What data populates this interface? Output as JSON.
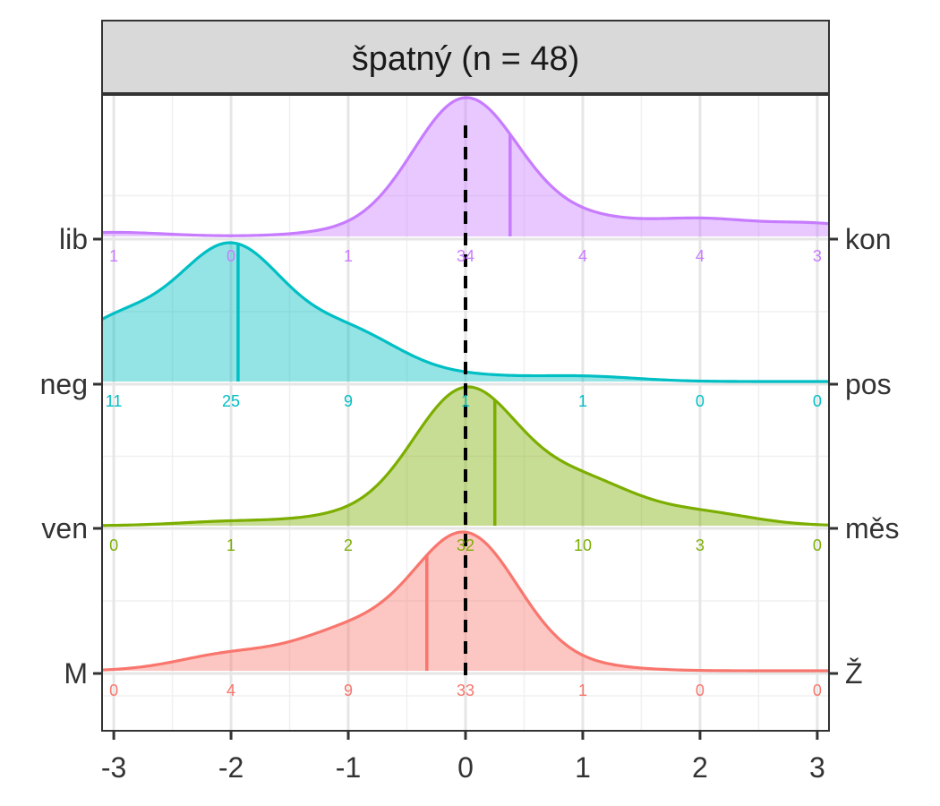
{
  "chart_data": {
    "type": "ridgeline-density",
    "title": "špatný (n = 48)",
    "x": [
      -3,
      -2,
      -1,
      0,
      1,
      2,
      3
    ],
    "xlim": [
      -3.1,
      3.1
    ],
    "x_tick_labels": [
      "-3",
      "-2",
      "-1",
      "0",
      "1",
      "2",
      "3"
    ],
    "reference_line_x": 0,
    "grid": true,
    "series": [
      {
        "left_label": "M",
        "right_label": "Ž",
        "color": "#F8766D",
        "mean": -0.33,
        "counts": [
          "0",
          "4",
          "9",
          "33",
          "1",
          "0",
          "0"
        ],
        "density": [
          0.0,
          0.083,
          0.188,
          0.688,
          0.021,
          0.0,
          0.0
        ]
      },
      {
        "left_label": "ven",
        "right_label": "měs",
        "color": "#7CAE00",
        "mean": 0.25,
        "counts": [
          "0",
          "1",
          "2",
          "32",
          "10",
          "3",
          "0"
        ],
        "density": [
          0.0,
          0.021,
          0.042,
          0.667,
          0.208,
          0.063,
          0.0
        ]
      },
      {
        "left_label": "neg",
        "right_label": "pos",
        "color": "#00BFC4",
        "mean": -1.94,
        "counts": [
          "11",
          "25",
          "9",
          "1",
          "1",
          "0",
          "0"
        ],
        "density": [
          0.229,
          0.521,
          0.188,
          0.021,
          0.021,
          0.0,
          0.0
        ]
      },
      {
        "left_label": "lib",
        "right_label": "kon",
        "color": "#C77CFF",
        "mean": 0.38,
        "counts": [
          "1",
          "0",
          "1",
          "34",
          "4",
          "4",
          "3"
        ],
        "density": [
          0.021,
          0.0,
          0.021,
          0.708,
          0.083,
          0.083,
          0.063
        ]
      }
    ]
  }
}
